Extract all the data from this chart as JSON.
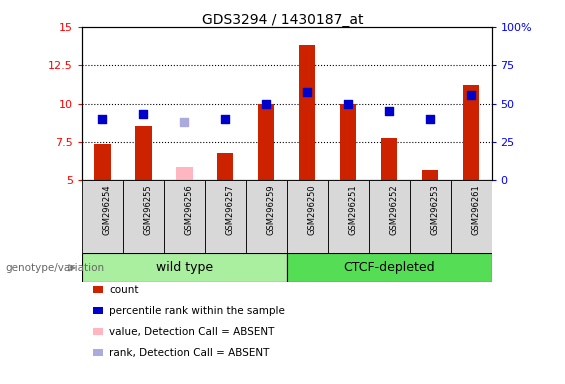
{
  "title": "GDS3294 / 1430187_at",
  "samples": [
    "GSM296254",
    "GSM296255",
    "GSM296256",
    "GSM296257",
    "GSM296259",
    "GSM296250",
    "GSM296251",
    "GSM296252",
    "GSM296253",
    "GSM296261"
  ],
  "count_values": [
    7.4,
    8.55,
    null,
    6.8,
    10.0,
    13.8,
    10.0,
    7.75,
    5.7,
    11.2
  ],
  "count_absent": [
    null,
    null,
    5.85,
    null,
    null,
    null,
    null,
    null,
    null,
    null
  ],
  "rank_values": [
    9.0,
    9.35,
    null,
    9.0,
    10.0,
    10.75,
    10.0,
    9.5,
    9.0,
    10.55
  ],
  "rank_absent": [
    null,
    null,
    8.8,
    null,
    null,
    null,
    null,
    null,
    null,
    null
  ],
  "ylim_left": [
    5,
    15
  ],
  "ylim_right": [
    0,
    100
  ],
  "yticks_left": [
    5,
    7.5,
    10,
    12.5,
    15
  ],
  "ytick_labels_left": [
    "5",
    "7.5",
    "10",
    "12.5",
    "15"
  ],
  "yticks_right": [
    0,
    25,
    50,
    75,
    100
  ],
  "ytick_labels_right": [
    "0",
    "25",
    "50",
    "75",
    "100%"
  ],
  "bar_color": "#CC2200",
  "bar_absent_color": "#FFB6C1",
  "dot_color": "#0000CC",
  "dot_absent_color": "#AAAADD",
  "bar_width": 0.4,
  "dot_size": 28,
  "legend_items": [
    {
      "label": "count",
      "color": "#CC2200"
    },
    {
      "label": "percentile rank within the sample",
      "color": "#0000CC"
    },
    {
      "label": "value, Detection Call = ABSENT",
      "color": "#FFB6C1"
    },
    {
      "label": "rank, Detection Call = ABSENT",
      "color": "#AAAADD"
    }
  ],
  "wt_color": "#AAEEA0",
  "ctcf_color": "#55DD55",
  "sample_box_color": "#D8D8D8",
  "genotype_label": "genotype/variation",
  "title_fontsize": 10
}
